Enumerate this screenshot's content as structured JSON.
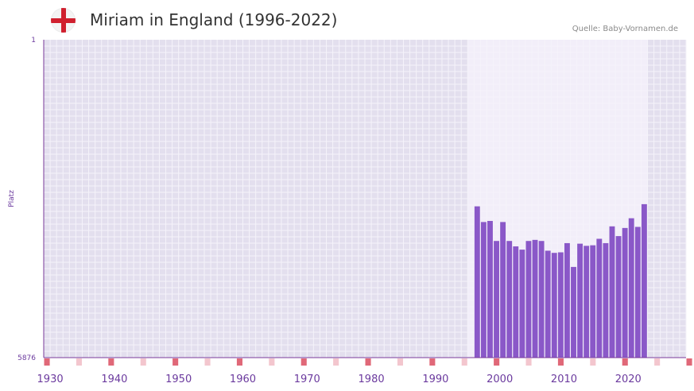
{
  "header": {
    "title": "Miriam in England (1996-2022)",
    "source": "Quelle: Baby-Vornamen.de"
  },
  "colors": {
    "bar": "#8a58c8",
    "axis": "#7a3a9a",
    "background": "#e3dfee",
    "highlight": "#f2eef9",
    "grid": "#f5f3fa",
    "tick_label": "#6b3a9e",
    "marker_strong": "#e06878",
    "marker_light": "#f3c6ce"
  },
  "chart_data": {
    "type": "bar",
    "title": "Miriam in England (1996-2022)",
    "xlabel": "",
    "ylabel": "Platz",
    "ylim": [
      5876,
      1
    ],
    "y_ticks": [
      1,
      5876
    ],
    "x_range": [
      1929,
      2029
    ],
    "x_ticks": [
      1930,
      1940,
      1950,
      1960,
      1970,
      1980,
      1990,
      2000,
      2010,
      2020
    ],
    "highlight_range": [
      1995,
      2022
    ],
    "x": [
      1996,
      1997,
      1998,
      1999,
      2000,
      2001,
      2002,
      2003,
      2004,
      2005,
      2006,
      2007,
      2008,
      2009,
      2010,
      2011,
      2012,
      2013,
      2014,
      2015,
      2016,
      2017,
      2018,
      2019,
      2020,
      2021,
      2022
    ],
    "values": [
      3080,
      3370,
      3350,
      3720,
      3370,
      3720,
      3820,
      3880,
      3720,
      3700,
      3720,
      3900,
      3940,
      3930,
      3760,
      4200,
      3770,
      3810,
      3800,
      3680,
      3760,
      3450,
      3630,
      3480,
      3300,
      3460,
      3040
    ],
    "decade_markers": [
      1929,
      1939,
      1949,
      1959,
      1969,
      1979,
      1989,
      1999,
      2009,
      2019,
      2029
    ],
    "minor_markers": [
      1934,
      1944,
      1954,
      1964,
      1974,
      1984,
      1994,
      2004,
      2014,
      2024
    ]
  }
}
